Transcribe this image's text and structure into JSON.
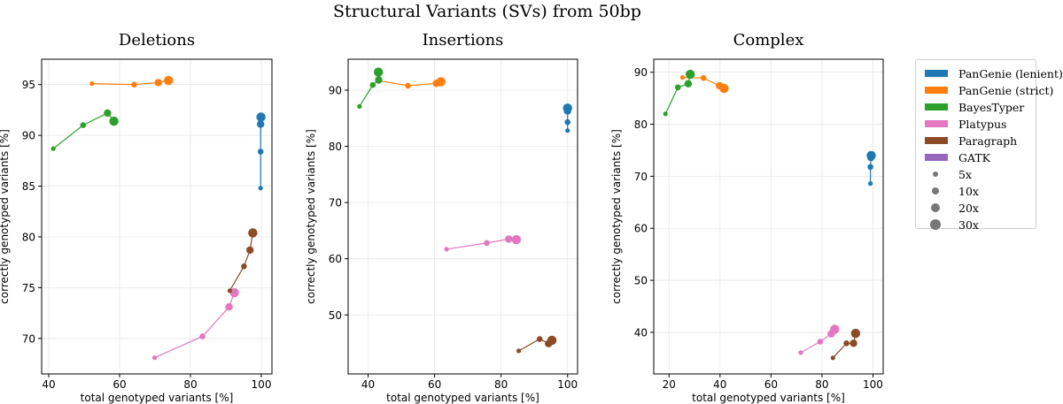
{
  "figure": {
    "title": "Structural Variants (SVs) from 50bp"
  },
  "legend": {
    "methods": [
      {
        "name": "PanGenie (lenient)",
        "color": "#1f77b4"
      },
      {
        "name": "PanGenie (strict)",
        "color": "#ff7f0e"
      },
      {
        "name": "BayesTyper",
        "color": "#2ca02c"
      },
      {
        "name": "Platypus",
        "color": "#e377c2"
      },
      {
        "name": "Paragraph",
        "color": "#8c4a26"
      },
      {
        "name": "GATK",
        "color": "#9467bd"
      }
    ],
    "coverages": [
      "5x",
      "10x",
      "20x",
      "30x"
    ]
  },
  "chart_data": [
    {
      "type": "scatter",
      "title": "Deletions",
      "xlabel": "total genotyped variants [%]",
      "ylabel": "correctly genotyped variants [%]",
      "xlim": [
        38,
        103
      ],
      "ylim": [
        66.5,
        97.5
      ],
      "xticks": [
        40,
        60,
        80,
        100
      ],
      "yticks": [
        70,
        75,
        80,
        85,
        90,
        95
      ],
      "grid": true,
      "series": [
        {
          "name": "PanGenie (lenient)",
          "x": [
            99.8,
            99.8,
            99.8,
            99.9
          ],
          "y": [
            84.8,
            88.4,
            91.1,
            91.8
          ]
        },
        {
          "name": "PanGenie (strict)",
          "x": [
            52.2,
            64.1,
            70.9,
            73.8
          ],
          "y": [
            95.1,
            95.0,
            95.2,
            95.4
          ]
        },
        {
          "name": "BayesTyper",
          "x": [
            41.3,
            49.7,
            56.6,
            58.4
          ],
          "y": [
            88.7,
            91.0,
            92.2,
            91.4
          ]
        },
        {
          "name": "Platypus",
          "x": [
            69.9,
            83.4,
            90.9,
            92.4
          ],
          "y": [
            68.1,
            70.2,
            73.1,
            74.5
          ]
        },
        {
          "name": "Paragraph",
          "x": [
            91.1,
            95.1,
            96.8,
            97.6
          ],
          "y": [
            74.7,
            77.1,
            78.7,
            80.4
          ]
        }
      ]
    },
    {
      "type": "scatter",
      "title": "Insertions",
      "xlabel": "total genotyped variants [%]",
      "ylabel": "correctly genotyped variants [%]",
      "xlim": [
        34,
        103
      ],
      "ylim": [
        39.5,
        95.5
      ],
      "xticks": [
        40,
        60,
        80,
        100
      ],
      "yticks": [
        50,
        60,
        70,
        80,
        90
      ],
      "grid": true,
      "series": [
        {
          "name": "PanGenie (lenient)",
          "x": [
            100.0,
            100.0,
            100.0,
            100.0
          ],
          "y": [
            82.8,
            84.3,
            86.3,
            86.8
          ]
        },
        {
          "name": "PanGenie (strict)",
          "x": [
            43.0,
            52.0,
            60.5,
            61.9
          ],
          "y": [
            91.7,
            90.8,
            91.2,
            91.5
          ]
        },
        {
          "name": "BayesTyper",
          "x": [
            37.4,
            41.4,
            43.2,
            43.1
          ],
          "y": [
            87.1,
            90.9,
            91.8,
            93.2
          ]
        },
        {
          "name": "Platypus",
          "x": [
            63.6,
            75.7,
            82.3,
            84.6
          ],
          "y": [
            61.7,
            62.8,
            63.5,
            63.4
          ]
        },
        {
          "name": "Paragraph",
          "x": [
            85.3,
            91.6,
            94.3,
            95.3
          ],
          "y": [
            43.6,
            45.7,
            44.9,
            45.5
          ]
        }
      ]
    },
    {
      "type": "scatter",
      "title": "Complex",
      "xlabel": "total genotyped variants [%]",
      "ylabel": "correctly genotyped variants [%]",
      "xlim": [
        14,
        104
      ],
      "ylim": [
        32,
        92.5
      ],
      "xticks": [
        20,
        40,
        60,
        80,
        100
      ],
      "yticks": [
        40,
        50,
        60,
        70,
        80,
        90
      ],
      "grid": true,
      "series": [
        {
          "name": "PanGenie (lenient)",
          "x": [
            99.0,
            99.0,
            99.2,
            99.3
          ],
          "y": [
            68.6,
            71.8,
            73.6,
            74.0
          ]
        },
        {
          "name": "PanGenie (strict)",
          "x": [
            25.3,
            33.5,
            39.8,
            41.6
          ],
          "y": [
            89.0,
            88.9,
            87.4,
            86.9
          ]
        },
        {
          "name": "BayesTyper",
          "x": [
            18.6,
            23.5,
            27.5,
            28.3
          ],
          "y": [
            82.0,
            87.1,
            87.8,
            89.6
          ]
        },
        {
          "name": "Platypus",
          "x": [
            71.7,
            79.3,
            83.6,
            85.0
          ],
          "y": [
            36.1,
            38.2,
            39.7,
            40.6
          ]
        },
        {
          "name": "Paragraph",
          "x": [
            84.3,
            89.6,
            92.4,
            93.2
          ],
          "y": [
            35.1,
            37.9,
            37.9,
            39.8
          ]
        }
      ]
    }
  ]
}
